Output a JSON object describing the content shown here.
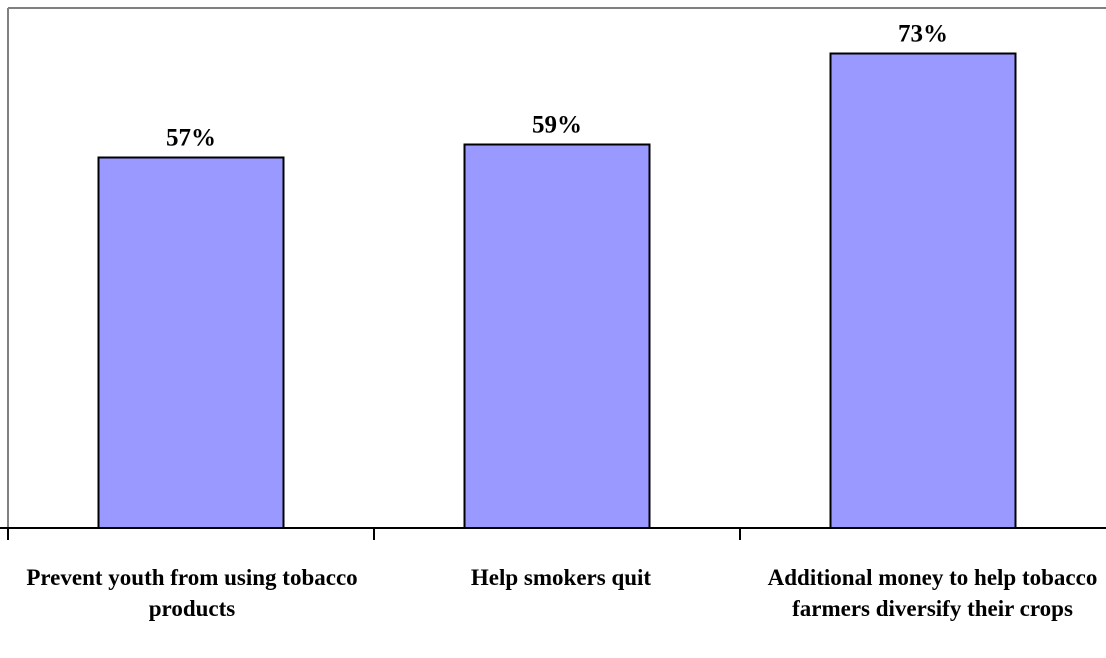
{
  "colors": {
    "bar_fill": "#9999ff",
    "bar_stroke": "#000000",
    "axis": "#000000",
    "frame": "#808080",
    "background": "#ffffff"
  },
  "chart_data": {
    "type": "bar",
    "categories": [
      "Prevent youth from using tobacco products",
      "Help smokers quit",
      "Additional money to help tobacco farmers diversify their crops"
    ],
    "values": [
      57,
      59,
      73
    ],
    "value_labels": [
      "57%",
      "59%",
      "73%"
    ],
    "ylim": [
      0,
      80
    ],
    "grid": false,
    "legend": "none"
  }
}
